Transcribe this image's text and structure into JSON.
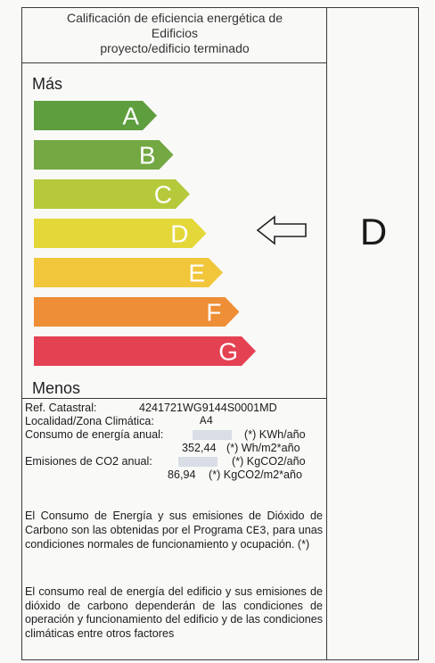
{
  "title": {
    "line1": "Calificación de eficiencia energética de",
    "line2": "Edificios",
    "line3": "proyecto/edificio terminado"
  },
  "scale": {
    "top_label": "Más",
    "bottom_label": "Menos",
    "bars": [
      {
        "letter": "A",
        "color": "#5f9e3f"
      },
      {
        "letter": "B",
        "color": "#74a843"
      },
      {
        "letter": "C",
        "color": "#b6c93a"
      },
      {
        "letter": "D",
        "color": "#e4d73a"
      },
      {
        "letter": "E",
        "color": "#f1c63a"
      },
      {
        "letter": "F",
        "color": "#ee8e37"
      },
      {
        "letter": "G",
        "color": "#e44152"
      }
    ],
    "indicator_icon": "left-arrow-outline-icon"
  },
  "rating": "D",
  "info": {
    "ref_label": "Ref. Catastral:",
    "ref_value": "4241721WG9144S0001MD",
    "zona_label": "Localidad/Zona Climática:",
    "zona_value": "A4",
    "consumo_label": "Consumo de energía anual:",
    "consumo_unit1": "(*) KWh/año",
    "consumo_value2": "352,44",
    "consumo_unit2": "(*) Wh/m2*año",
    "emisiones_label": "Emisiones de CO2 anual:",
    "emisiones_unit1": "(*) KgCO2/año",
    "emisiones_value2": "86,94",
    "emisiones_unit2": "(*) KgCO2/m2*año"
  },
  "paragraph1": {
    "before": "El Consumo de Energía y sus emisiones de Dióxido de Carbono son las obtenidas por el Programa ",
    "program": "CE3",
    "after": ", para unas condiciones normales de funcionamiento y ocupación. (*)"
  },
  "paragraph2": "El consumo real de energía del edificio y sus emisiones de dióxido de carbono dependerán de las condiciones de operación y funcionamiento del edificio y de las condiciones climáticas entre otros factores"
}
